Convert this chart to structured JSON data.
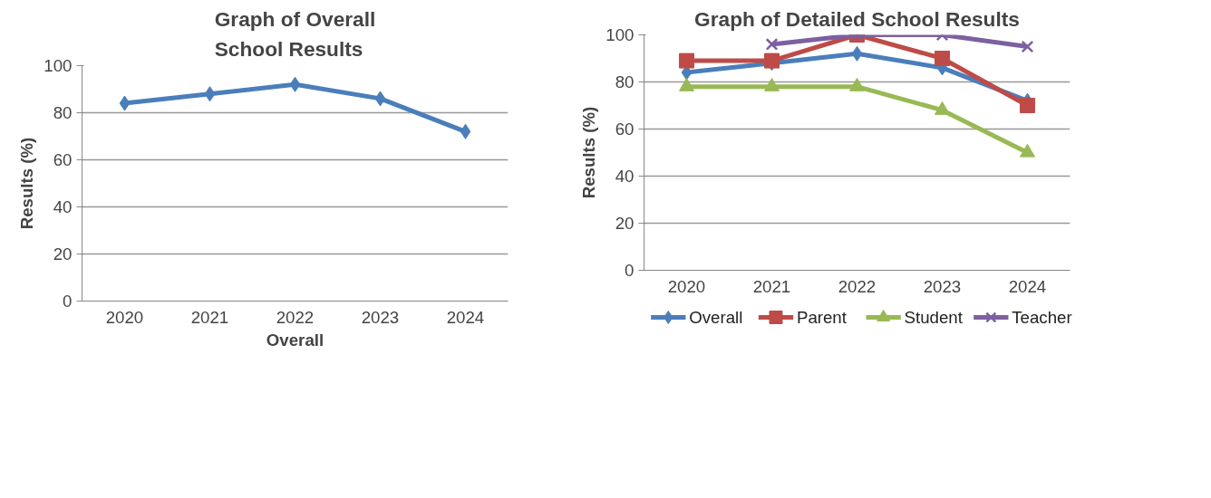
{
  "chart_data": [
    {
      "type": "line",
      "title": "Graph of Overall\nSchool Results",
      "xlabel": "Overall",
      "ylabel": "Results (%)",
      "categories": [
        "2020",
        "2021",
        "2022",
        "2023",
        "2024"
      ],
      "ylim": [
        0,
        100
      ],
      "yticks": [
        0,
        20,
        40,
        60,
        80,
        100
      ],
      "grid": "y",
      "legend": false,
      "marker": "diamond",
      "series": [
        {
          "color": "#4a7ebb",
          "values": [
            84,
            88,
            92,
            86,
            72
          ]
        }
      ]
    },
    {
      "type": "line",
      "title": "Graph of Detailed School Results",
      "ylabel": "Results (%)",
      "categories": [
        "2020",
        "2021",
        "2022",
        "2023",
        "2024"
      ],
      "ylim": [
        0,
        100
      ],
      "yticks": [
        0,
        20,
        40,
        60,
        80,
        100
      ],
      "grid": "y",
      "legend": "bottom",
      "series": [
        {
          "name": "Overall",
          "color": "#4a7ebb",
          "marker": "diamond",
          "values": [
            84,
            88,
            92,
            86,
            72
          ]
        },
        {
          "name": "Parent",
          "color": "#be4b48",
          "marker": "square",
          "values": [
            89,
            89,
            100,
            90,
            70
          ]
        },
        {
          "name": "Student",
          "color": "#98b954",
          "marker": "triangle",
          "values": [
            78,
            78,
            78,
            68,
            50
          ]
        },
        {
          "name": "Teacher",
          "color": "#7d60a0",
          "marker": "cross",
          "values": [
            null,
            96,
            100,
            100,
            95
          ]
        }
      ]
    }
  ]
}
